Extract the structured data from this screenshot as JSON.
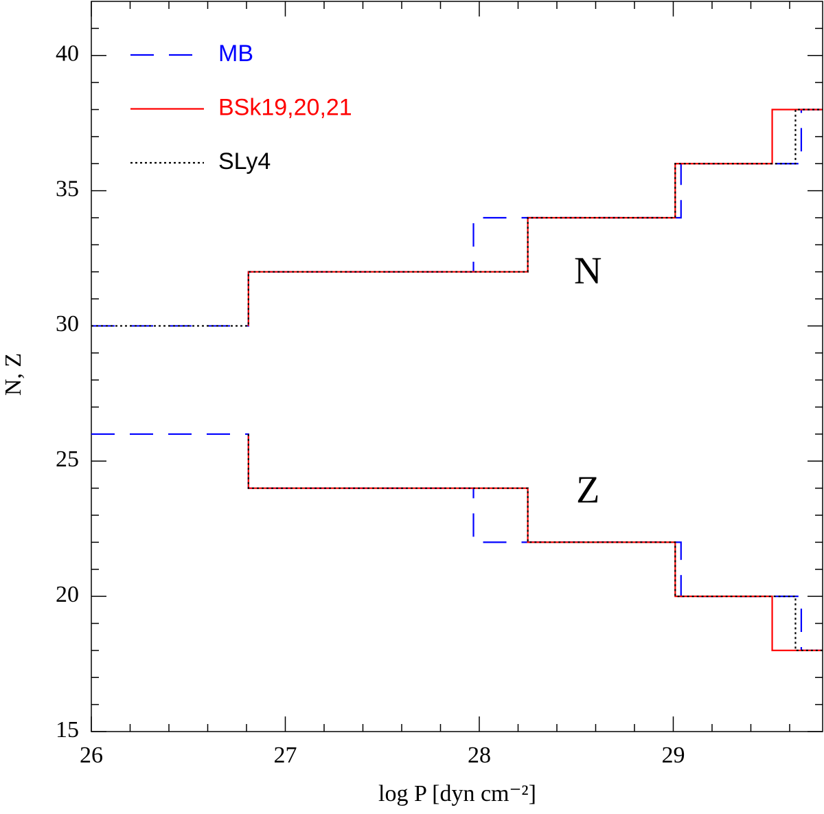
{
  "chart_data": {
    "type": "line",
    "xlabel": "log P [dyn cm⁻²]",
    "ylabel": "N, Z",
    "xlim": [
      26,
      29.77
    ],
    "ylim": [
      15,
      42
    ],
    "xticks": [
      26,
      27,
      28,
      29
    ],
    "yticks": [
      15,
      20,
      25,
      30,
      35,
      40
    ],
    "xminorticks": [
      26.2,
      26.4,
      26.6,
      26.8,
      27.2,
      27.4,
      27.6,
      27.8,
      28.2,
      28.4,
      28.6,
      28.8,
      29.2,
      29.4,
      29.6
    ],
    "yminorticks": [
      16,
      17,
      18,
      19,
      21,
      22,
      23,
      24,
      26,
      27,
      28,
      29,
      31,
      32,
      33,
      34,
      36,
      37,
      38,
      39,
      41
    ],
    "annotations": [
      {
        "text": "N",
        "x": 28.56,
        "y": 31.9
      },
      {
        "text": "Z",
        "x": 28.56,
        "y": 23.8
      }
    ],
    "series": [
      {
        "name": "MB",
        "color": "#0000ff",
        "dash": "dashed",
        "N": {
          "x": [
            26,
            26.81,
            26.81,
            27.97,
            27.97,
            29.04,
            29.04,
            29.66,
            29.66,
            29.77
          ],
          "values": [
            30,
            30,
            32,
            32,
            34,
            34,
            36,
            36,
            38,
            38
          ]
        },
        "Z": {
          "x": [
            26,
            26.81,
            26.81,
            27.97,
            27.97,
            29.04,
            29.04,
            29.66,
            29.66,
            29.77
          ],
          "values": [
            26,
            26,
            24,
            24,
            22,
            22,
            20,
            20,
            18,
            18
          ]
        }
      },
      {
        "name": "BSk19,20,21",
        "color": "#ff0000",
        "dash": "solid",
        "N": {
          "x": [
            26.81,
            26.81,
            28.25,
            28.25,
            29.01,
            29.01,
            29.51,
            29.51,
            29.77
          ],
          "values": [
            30,
            32,
            32,
            34,
            34,
            36,
            36,
            38,
            38
          ]
        },
        "Z": {
          "x": [
            26.81,
            26.81,
            28.25,
            28.25,
            29.01,
            29.01,
            29.51,
            29.51,
            29.77
          ],
          "values": [
            26,
            24,
            24,
            22,
            22,
            20,
            20,
            18,
            18
          ]
        }
      },
      {
        "name": "SLy4",
        "color": "#000000",
        "dash": "dotted",
        "N": {
          "x": [
            26,
            26.81,
            26.81,
            28.25,
            28.25,
            29.01,
            29.01,
            29.63,
            29.63,
            29.77
          ],
          "values": [
            30,
            30,
            32,
            32,
            34,
            34,
            36,
            36,
            38,
            38
          ]
        },
        "Z": {
          "x": [
            26.81,
            26.81,
            28.25,
            28.25,
            29.01,
            29.01,
            29.63,
            29.63,
            29.77
          ],
          "values": [
            26,
            24,
            24,
            22,
            22,
            20,
            20,
            18,
            18
          ]
        }
      }
    ]
  }
}
